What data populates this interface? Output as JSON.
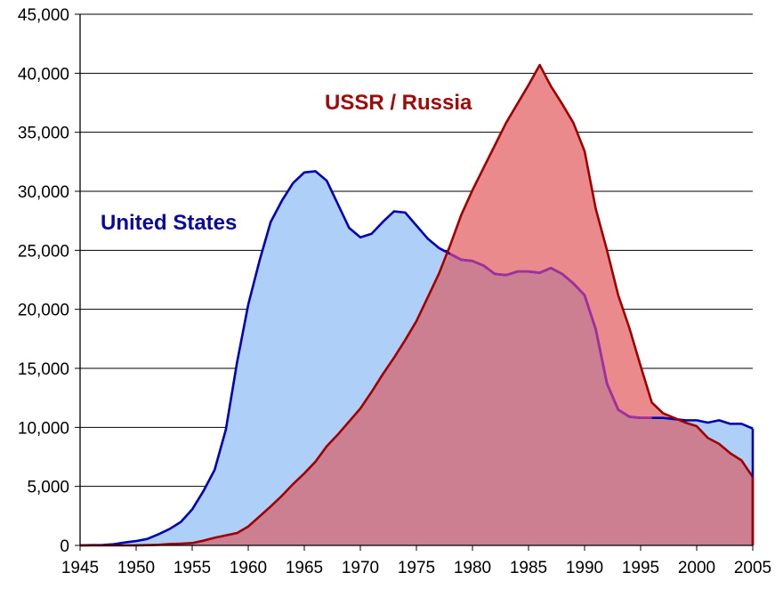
{
  "chart_data": {
    "type": "area",
    "title": "",
    "xlabel": "",
    "ylabel": "",
    "xlim": [
      1945,
      2005
    ],
    "ylim": [
      0,
      45000
    ],
    "x_ticks": [
      1945,
      1950,
      1955,
      1960,
      1965,
      1970,
      1975,
      1980,
      1985,
      1990,
      1995,
      2000,
      2005
    ],
    "y_ticks": [
      0,
      5000,
      10000,
      15000,
      20000,
      25000,
      30000,
      35000,
      40000,
      45000
    ],
    "x_tick_labels": [
      "1945",
      "1950",
      "1955",
      "1960",
      "1965",
      "1970",
      "1975",
      "1980",
      "1985",
      "1990",
      "1995",
      "2000",
      "2005"
    ],
    "y_tick_labels": [
      "0",
      "5,000",
      "10,000",
      "15,000",
      "20,000",
      "25,000",
      "30,000",
      "35,000",
      "40,000",
      "45,000"
    ],
    "grid": true,
    "legend": "none",
    "series": [
      {
        "name": "United States",
        "line_color": "#0000b4",
        "fill_color": "#aecff8",
        "label_color": "#0a0a9a",
        "points": [
          [
            1945,
            0
          ],
          [
            1946,
            20
          ],
          [
            1947,
            30
          ],
          [
            1948,
            100
          ],
          [
            1949,
            250
          ],
          [
            1950,
            370
          ],
          [
            1951,
            550
          ],
          [
            1952,
            950
          ],
          [
            1953,
            1400
          ],
          [
            1954,
            2000
          ],
          [
            1955,
            3050
          ],
          [
            1956,
            4600
          ],
          [
            1957,
            6400
          ],
          [
            1958,
            9800
          ],
          [
            1959,
            15500
          ],
          [
            1960,
            20400
          ],
          [
            1961,
            24100
          ],
          [
            1962,
            27400
          ],
          [
            1963,
            29200
          ],
          [
            1964,
            30700
          ],
          [
            1965,
            31600
          ],
          [
            1966,
            31700
          ],
          [
            1967,
            30900
          ],
          [
            1968,
            28900
          ],
          [
            1969,
            26900
          ],
          [
            1970,
            26100
          ],
          [
            1971,
            26400
          ],
          [
            1972,
            27400
          ],
          [
            1973,
            28300
          ],
          [
            1974,
            28200
          ],
          [
            1975,
            27100
          ],
          [
            1976,
            26000
          ],
          [
            1977,
            25200
          ],
          [
            1978,
            24700
          ],
          [
            1979,
            24200
          ],
          [
            1980,
            24100
          ],
          [
            1981,
            23700
          ],
          [
            1982,
            23000
          ],
          [
            1983,
            22900
          ],
          [
            1984,
            23200
          ],
          [
            1985,
            23200
          ],
          [
            1986,
            23100
          ],
          [
            1987,
            23500
          ],
          [
            1988,
            23000
          ],
          [
            1989,
            22200
          ],
          [
            1990,
            21200
          ],
          [
            1991,
            18300
          ],
          [
            1992,
            13700
          ],
          [
            1993,
            11500
          ],
          [
            1994,
            10900
          ],
          [
            1995,
            10800
          ],
          [
            1996,
            10800
          ],
          [
            1997,
            10800
          ],
          [
            1998,
            10700
          ],
          [
            1999,
            10600
          ],
          [
            2000,
            10600
          ],
          [
            2001,
            10400
          ],
          [
            2002,
            10600
          ],
          [
            2003,
            10300
          ],
          [
            2004,
            10300
          ],
          [
            2005,
            9900
          ]
        ]
      },
      {
        "name": "USSR / Russia",
        "line_color": "#a00000",
        "fill_color": "#ea8a8c",
        "label_color": "#a00a0a",
        "points": [
          [
            1945,
            0
          ],
          [
            1949,
            1
          ],
          [
            1950,
            5
          ],
          [
            1951,
            25
          ],
          [
            1952,
            50
          ],
          [
            1953,
            120
          ],
          [
            1954,
            150
          ],
          [
            1955,
            200
          ],
          [
            1956,
            400
          ],
          [
            1957,
            650
          ],
          [
            1958,
            850
          ],
          [
            1959,
            1050
          ],
          [
            1960,
            1600
          ],
          [
            1961,
            2450
          ],
          [
            1962,
            3300
          ],
          [
            1963,
            4200
          ],
          [
            1964,
            5200
          ],
          [
            1965,
            6100
          ],
          [
            1966,
            7100
          ],
          [
            1967,
            8400
          ],
          [
            1968,
            9400
          ],
          [
            1969,
            10500
          ],
          [
            1970,
            11600
          ],
          [
            1971,
            13000
          ],
          [
            1972,
            14500
          ],
          [
            1973,
            15900
          ],
          [
            1974,
            17400
          ],
          [
            1975,
            19000
          ],
          [
            1976,
            21000
          ],
          [
            1977,
            23000
          ],
          [
            1978,
            25400
          ],
          [
            1979,
            28000
          ],
          [
            1980,
            30100
          ],
          [
            1981,
            32000
          ],
          [
            1982,
            33900
          ],
          [
            1983,
            35800
          ],
          [
            1984,
            37400
          ],
          [
            1985,
            39000
          ],
          [
            1986,
            40700
          ],
          [
            1987,
            38900
          ],
          [
            1988,
            37400
          ],
          [
            1989,
            35800
          ],
          [
            1990,
            33400
          ],
          [
            1991,
            28500
          ],
          [
            1992,
            25000
          ],
          [
            1993,
            21200
          ],
          [
            1994,
            18400
          ],
          [
            1995,
            15200
          ],
          [
            1996,
            12100
          ],
          [
            1997,
            11200
          ],
          [
            1998,
            10800
          ],
          [
            1999,
            10400
          ],
          [
            2000,
            10100
          ],
          [
            2001,
            9100
          ],
          [
            2002,
            8600
          ],
          [
            2003,
            7800
          ],
          [
            2004,
            7200
          ],
          [
            2005,
            5800
          ]
        ]
      }
    ],
    "overlap_fill_color": "#cc7f90",
    "overlap_line_color": "#a0309e"
  }
}
